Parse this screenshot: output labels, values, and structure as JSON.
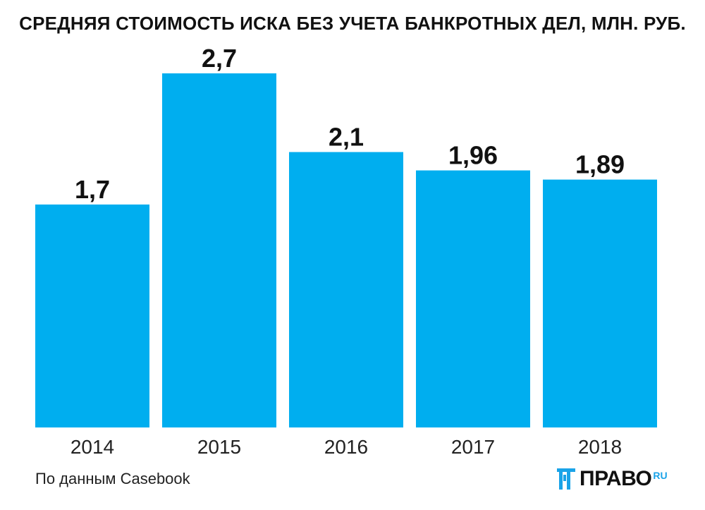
{
  "chart_data": {
    "type": "bar",
    "title": "СРЕДНЯЯ СТОИМОСТЬ ИСКА БЕЗ УЧЕТА БАНКРОТНЫХ ДЕЛ, МЛН. РУБ.",
    "categories": [
      "2014",
      "2015",
      "2016",
      "2017",
      "2018"
    ],
    "values": [
      1.7,
      2.7,
      2.1,
      1.96,
      1.89
    ],
    "value_labels": [
      "1,7",
      "2,7",
      "2,1",
      "1,96",
      "1,89"
    ],
    "xlabel": "",
    "ylabel": "",
    "ylim": [
      0,
      2.7
    ],
    "grid": false,
    "bar_color": "#00aeef"
  },
  "footer": {
    "source": "По данным Casebook",
    "logo_text": "ПРАВО",
    "logo_sup": "RU"
  },
  "colors": {
    "bar": "#00aeef",
    "logo_accent": "#1aa3e8",
    "text": "#111111"
  }
}
